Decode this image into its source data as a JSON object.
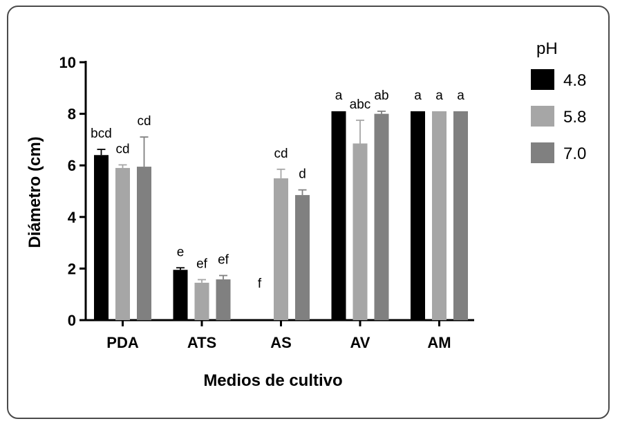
{
  "chart_data": {
    "type": "bar",
    "title": "",
    "xlabel": "Medios de cultivo",
    "ylabel": "Diámetro (cm)",
    "ylim": [
      0,
      10
    ],
    "yticks": [
      "0",
      "2",
      "4",
      "6",
      "8",
      "10"
    ],
    "categories": [
      "PDA",
      "ATS",
      "AS",
      "AV",
      "AM"
    ],
    "legend_title": "pH",
    "legend_position": "top-right",
    "series": [
      {
        "name": "4.8",
        "color": "#000000",
        "values": [
          6.4,
          1.95,
          0,
          8.1,
          8.1
        ],
        "errors": [
          0.22,
          0.08,
          0,
          0,
          0
        ],
        "labels": [
          "bcd",
          "e",
          "f",
          "a",
          "a"
        ]
      },
      {
        "name": "5.8",
        "color": "#a6a6a6",
        "values": [
          5.9,
          1.45,
          5.5,
          6.85,
          8.1
        ],
        "errors": [
          0.12,
          0.12,
          0.35,
          0.9,
          0
        ],
        "labels": [
          "cd",
          "ef",
          "cd",
          "abc",
          "a"
        ]
      },
      {
        "name": "7.0",
        "color": "#808080",
        "values": [
          5.95,
          1.58,
          4.85,
          8.0,
          8.1
        ],
        "errors": [
          1.15,
          0.15,
          0.2,
          0.1,
          0
        ],
        "labels": [
          "cd",
          "ef",
          "d",
          "ab",
          "a"
        ]
      }
    ]
  }
}
